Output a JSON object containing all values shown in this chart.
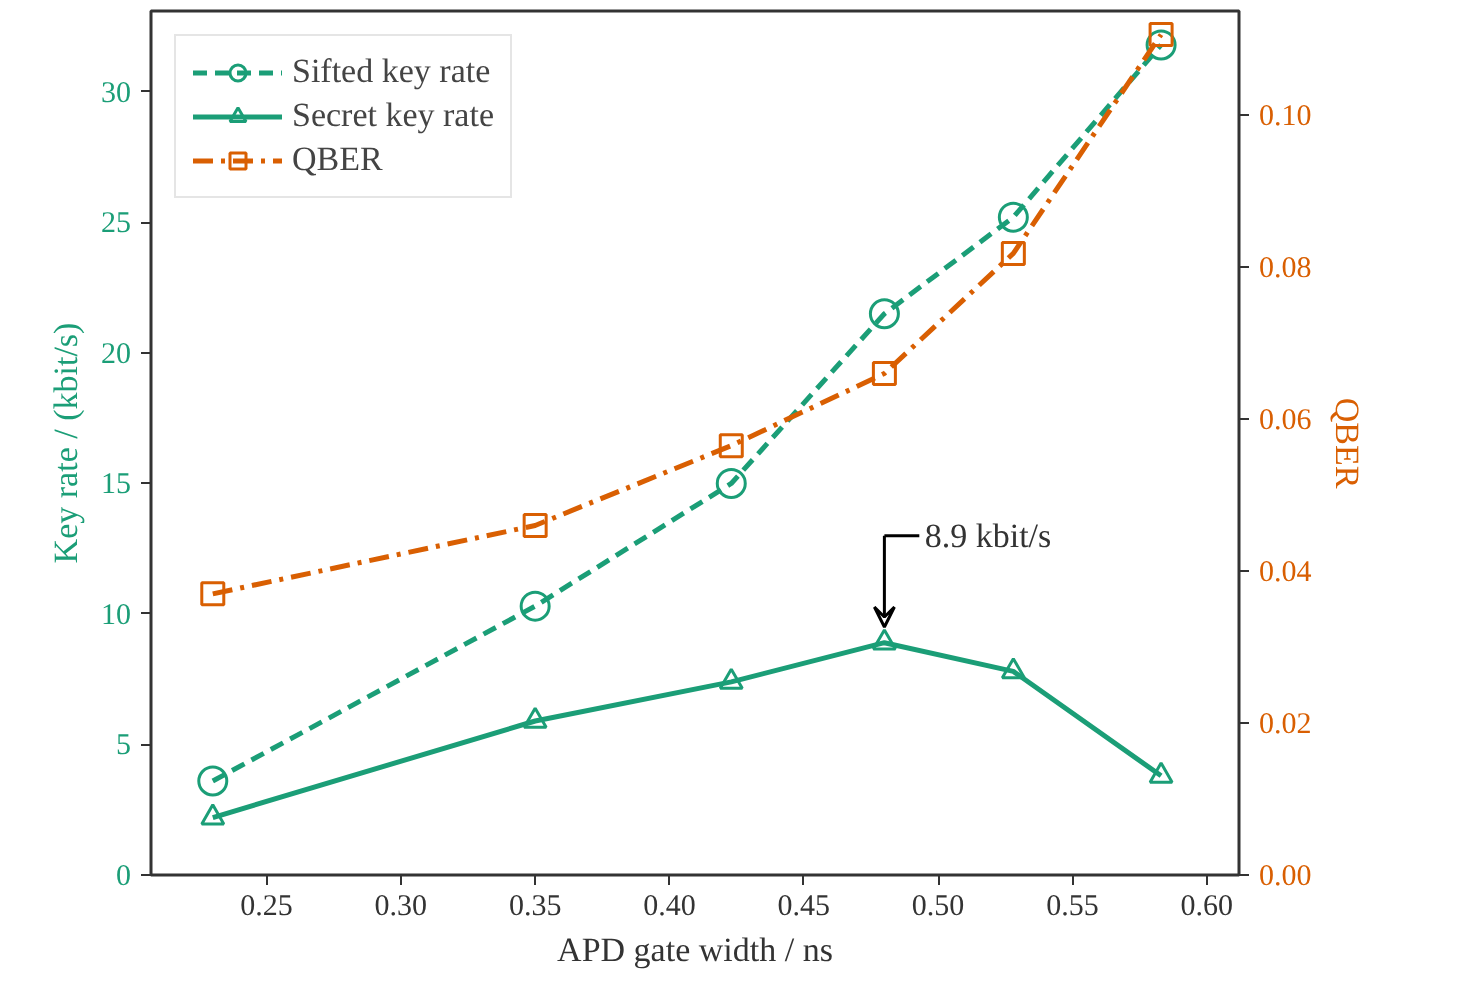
{
  "chart_data": {
    "type": "line",
    "xlabel": "APD gate width / ns",
    "ylabel": "Key rate / (kbit/s)",
    "y2label": "QBER",
    "x": [
      0.23,
      0.35,
      0.423,
      0.48,
      0.528,
      0.583
    ],
    "series": [
      {
        "name": "Sifted key rate",
        "color": "#1b9e77",
        "values": [
          3.6,
          10.3,
          15.0,
          21.5,
          25.2,
          31.8
        ],
        "marker": "circle",
        "line_style": "dashed"
      },
      {
        "name": "Secret key rate",
        "color": "#1b9e77",
        "values": [
          2.2,
          5.9,
          7.4,
          8.9,
          7.8,
          3.8
        ],
        "marker": "triangle",
        "line_style": "solid"
      },
      {
        "name": "QBER",
        "color": "#d95f02",
        "values": [
          0.037,
          0.046,
          0.0565,
          0.066,
          0.0818,
          0.1106
        ],
        "marker": "square",
        "line_style": "dashdot",
        "axis": "y2"
      }
    ],
    "xlim": [
      0.207,
      0.612
    ],
    "ylim": [
      0,
      33.1
    ],
    "y2lim": [
      0,
      0.1137
    ],
    "xticks": [
      0.25,
      {
        "value": 0.3,
        "label": "0.30"
      },
      0.35,
      {
        "value": 0.4,
        "label": "0.40"
      },
      0.45,
      {
        "value": 0.5,
        "label": "0.50"
      },
      0.55,
      {
        "value": 0.6,
        "label": "0.60"
      }
    ],
    "yticks": [
      0,
      5,
      10,
      15,
      20,
      25,
      30
    ],
    "y2ticks": [
      {
        "value": 0,
        "label": "0.00"
      },
      {
        "value": 0.02,
        "label": "0.02"
      },
      {
        "value": 0.04,
        "label": "0.04"
      },
      {
        "value": 0.06,
        "label": "0.06"
      },
      {
        "value": 0.08,
        "label": "0.08"
      },
      {
        "value": 0.1,
        "label": "0.10"
      }
    ],
    "annotations": [
      {
        "text": "8.9 kbit/s",
        "x": 0.48,
        "y": 8.9
      }
    ],
    "legend": "top left",
    "grid": false
  }
}
